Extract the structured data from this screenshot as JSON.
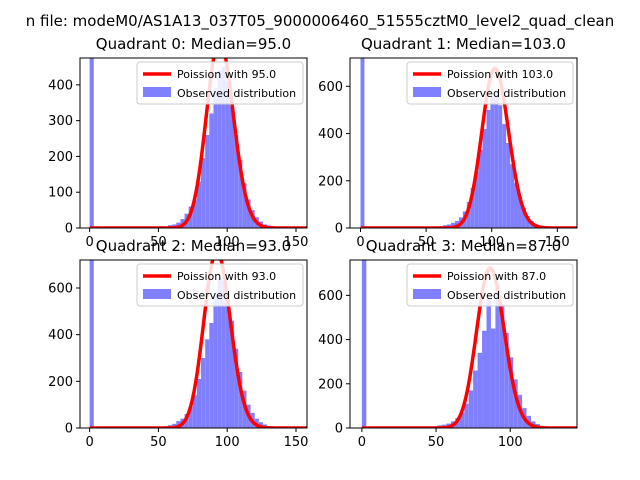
{
  "suptitle": "n file: modeM0/AS1A13_037T05_9000006460_51555cztM0_level2_quad_clean",
  "colors": {
    "hist": "#8080ff",
    "poisson": "#ff0000",
    "frame": "#000000"
  },
  "chart_data": [
    {
      "type": "bar",
      "title": "Quadrant 0: Median=95.0",
      "xlim": [
        -7,
        158
      ],
      "ylim": [
        0,
        475
      ],
      "xticks": [
        0,
        50,
        100,
        150
      ],
      "yticks": [
        0,
        100,
        200,
        300,
        400
      ],
      "legend": {
        "position": "top-right",
        "entries": [
          "Poission with 95.0",
          "Observed distribution"
        ]
      },
      "series": [
        {
          "name": "Observed distribution",
          "type": "histogram",
          "x": [
            0,
            3,
            6,
            9,
            48,
            51,
            54,
            57,
            60,
            63,
            66,
            69,
            72,
            75,
            78,
            81,
            84,
            87,
            90,
            93,
            96,
            99,
            102,
            105,
            108,
            111,
            114,
            117,
            120,
            123,
            126,
            129,
            132,
            135,
            138,
            141,
            144,
            147,
            150,
            153
          ],
          "values": [
            475,
            5,
            2,
            1,
            4,
            5,
            4,
            8,
            10,
            15,
            25,
            40,
            60,
            80,
            130,
            195,
            260,
            320,
            390,
            440,
            450,
            410,
            340,
            260,
            190,
            125,
            80,
            50,
            30,
            18,
            10,
            7,
            4,
            2,
            1,
            1,
            0,
            0,
            0,
            0
          ]
        },
        {
          "name": "Poission with 95.0",
          "type": "line",
          "mean": 95.0
        }
      ]
    },
    {
      "type": "bar",
      "title": "Quadrant 1: Median=103.0",
      "xlim": [
        -8,
        165
      ],
      "ylim": [
        0,
        720
      ],
      "xticks": [
        0,
        50,
        100,
        150
      ],
      "yticks": [
        0,
        200,
        400,
        600
      ],
      "legend": {
        "position": "top-right",
        "entries": [
          "Poission with 103.0",
          "Observed distribution"
        ]
      },
      "series": [
        {
          "name": "Observed distribution",
          "type": "histogram",
          "x": [
            0,
            3,
            6,
            9,
            48,
            51,
            54,
            57,
            60,
            63,
            66,
            69,
            72,
            75,
            78,
            81,
            84,
            87,
            90,
            93,
            96,
            99,
            102,
            105,
            108,
            111,
            114,
            117,
            120,
            123,
            126,
            129,
            132,
            135,
            138,
            141,
            144,
            147,
            150,
            153,
            156,
            159
          ],
          "values": [
            720,
            8,
            3,
            1,
            3,
            4,
            5,
            6,
            8,
            12,
            15,
            22,
            30,
            45,
            70,
            110,
            170,
            240,
            330,
            420,
            500,
            560,
            580,
            520,
            440,
            360,
            270,
            190,
            130,
            85,
            50,
            30,
            18,
            10,
            6,
            3,
            2,
            1,
            1,
            0,
            0,
            0
          ]
        },
        {
          "name": "Poission with 103.0",
          "type": "line",
          "mean": 103.0
        }
      ]
    },
    {
      "type": "bar",
      "title": "Quadrant 2: Median=93.0",
      "xlim": [
        -7,
        158
      ],
      "ylim": [
        0,
        720
      ],
      "xticks": [
        0,
        50,
        100,
        150
      ],
      "yticks": [
        0,
        200,
        400,
        600
      ],
      "legend": {
        "position": "top-right",
        "entries": [
          "Poission with 93.0",
          "Observed distribution"
        ]
      },
      "series": [
        {
          "name": "Observed distribution",
          "type": "histogram",
          "x": [
            0,
            3,
            6,
            9,
            48,
            51,
            54,
            57,
            60,
            63,
            66,
            69,
            72,
            75,
            78,
            81,
            84,
            87,
            90,
            93,
            96,
            99,
            102,
            105,
            108,
            111,
            114,
            117,
            120,
            123,
            126,
            129,
            132,
            135,
            138,
            141,
            144,
            147,
            150,
            153
          ],
          "values": [
            720,
            3,
            2,
            1,
            4,
            6,
            8,
            12,
            18,
            30,
            40,
            60,
            90,
            140,
            210,
            300,
            380,
            450,
            560,
            640,
            630,
            590,
            460,
            340,
            240,
            160,
            100,
            65,
            40,
            25,
            15,
            8,
            5,
            3,
            2,
            1,
            0,
            0,
            0,
            0
          ]
        },
        {
          "name": "Poission with 93.0",
          "type": "line",
          "mean": 93.0
        }
      ]
    },
    {
      "type": "bar",
      "title": "Quadrant 3: Median=87.0",
      "xlim": [
        -8,
        145
      ],
      "ylim": [
        0,
        760
      ],
      "xticks": [
        0,
        50,
        100
      ],
      "yticks": [
        0,
        200,
        400,
        600
      ],
      "legend": {
        "position": "top-right",
        "entries": [
          "Poission with 87.0",
          "Observed distribution"
        ]
      },
      "series": [
        {
          "name": "Observed distribution",
          "type": "histogram",
          "x": [
            0,
            3,
            6,
            42,
            45,
            48,
            51,
            54,
            57,
            60,
            63,
            66,
            69,
            72,
            75,
            78,
            81,
            84,
            87,
            90,
            93,
            96,
            99,
            102,
            105,
            108,
            111,
            114,
            117,
            120,
            123,
            126,
            129,
            132,
            135
          ],
          "values": [
            760,
            3,
            1,
            4,
            6,
            8,
            12,
            15,
            20,
            30,
            45,
            70,
            110,
            170,
            260,
            340,
            440,
            590,
            450,
            650,
            560,
            430,
            320,
            220,
            150,
            90,
            55,
            30,
            18,
            10,
            6,
            3,
            2,
            1,
            0
          ]
        },
        {
          "name": "Poission with 87.0",
          "type": "line",
          "mean": 87.0
        }
      ]
    }
  ]
}
